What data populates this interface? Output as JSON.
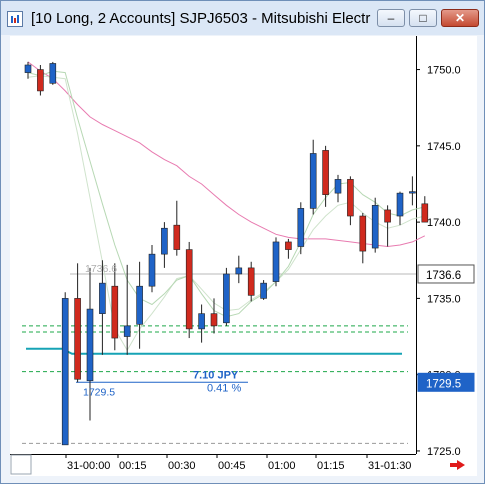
{
  "window": {
    "title": "[10 Long, 2 Accounts]  SJPJ6503 - Mitsubishi Electr…",
    "minimize_label": "–",
    "maximize_label": "□",
    "close_label": "✕"
  },
  "chart_data": {
    "type": "candlestick",
    "symbol": "SJPJ6503",
    "y_ticks": [
      "1750.0",
      "1745.0",
      "1740.0",
      "1735.0",
      "1730.0",
      "1725.0"
    ],
    "ylim": [
      1724.8,
      1752.2
    ],
    "x_ticks": [
      "31-00:00",
      "00:15",
      "00:30",
      "00:45",
      "01:00",
      "01:15",
      "31-01:30"
    ],
    "candles": [
      {
        "o": 1749.8,
        "h": 1750.5,
        "l": 1749.4,
        "c": 1750.3
      },
      {
        "o": 1750.0,
        "h": 1750.3,
        "l": 1748.3,
        "c": 1748.6
      },
      {
        "o": 1749.1,
        "h": 1750.5,
        "l": 1749.0,
        "c": 1750.4
      },
      {
        "o": 1725.4,
        "h": 1735.4,
        "l": 1725.4,
        "c": 1735.0
      },
      {
        "o": 1735.0,
        "h": 1737.3,
        "l": 1729.5,
        "c": 1729.7
      },
      {
        "o": 1729.6,
        "h": 1737.0,
        "l": 1727.0,
        "c": 1734.3
      },
      {
        "o": 1734.0,
        "h": 1737.5,
        "l": 1731.3,
        "c": 1736.0
      },
      {
        "o": 1735.8,
        "h": 1737.3,
        "l": 1731.6,
        "c": 1732.4
      },
      {
        "o": 1732.5,
        "h": 1737.2,
        "l": 1731.3,
        "c": 1733.2
      },
      {
        "o": 1733.3,
        "h": 1737.4,
        "l": 1731.7,
        "c": 1735.8
      },
      {
        "o": 1735.8,
        "h": 1738.5,
        "l": 1735.4,
        "c": 1737.9
      },
      {
        "o": 1737.9,
        "h": 1740.0,
        "l": 1737.0,
        "c": 1739.6
      },
      {
        "o": 1739.8,
        "h": 1741.4,
        "l": 1737.8,
        "c": 1738.2
      },
      {
        "o": 1738.2,
        "h": 1738.7,
        "l": 1732.4,
        "c": 1733.0
      },
      {
        "o": 1733.0,
        "h": 1734.6,
        "l": 1732.1,
        "c": 1734.0
      },
      {
        "o": 1734.0,
        "h": 1735.0,
        "l": 1732.7,
        "c": 1733.2
      },
      {
        "o": 1733.4,
        "h": 1737.0,
        "l": 1733.2,
        "c": 1736.6
      },
      {
        "o": 1736.6,
        "h": 1737.8,
        "l": 1736.0,
        "c": 1737.0
      },
      {
        "o": 1737.0,
        "h": 1737.4,
        "l": 1734.8,
        "c": 1735.2
      },
      {
        "o": 1735.0,
        "h": 1736.2,
        "l": 1734.9,
        "c": 1736.0
      },
      {
        "o": 1736.1,
        "h": 1739.0,
        "l": 1735.8,
        "c": 1738.7
      },
      {
        "o": 1738.7,
        "h": 1738.9,
        "l": 1737.6,
        "c": 1738.2
      },
      {
        "o": 1738.4,
        "h": 1741.3,
        "l": 1737.9,
        "c": 1740.9
      },
      {
        "o": 1740.9,
        "h": 1745.4,
        "l": 1740.5,
        "c": 1744.5
      },
      {
        "o": 1744.7,
        "h": 1745.0,
        "l": 1741.0,
        "c": 1741.8
      },
      {
        "o": 1741.9,
        "h": 1743.1,
        "l": 1741.3,
        "c": 1742.8
      },
      {
        "o": 1742.8,
        "h": 1743.0,
        "l": 1739.8,
        "c": 1740.4
      },
      {
        "o": 1740.4,
        "h": 1740.6,
        "l": 1737.3,
        "c": 1738.1
      },
      {
        "o": 1738.3,
        "h": 1741.6,
        "l": 1738.0,
        "c": 1741.1
      },
      {
        "o": 1740.8,
        "h": 1741.1,
        "l": 1738.4,
        "c": 1740.0
      },
      {
        "o": 1740.4,
        "h": 1742.0,
        "l": 1739.8,
        "c": 1741.9
      },
      {
        "o": 1741.9,
        "h": 1743.0,
        "l": 1741.1,
        "c": 1742.0
      },
      {
        "o": 1741.2,
        "h": 1741.7,
        "l": 1740.0,
        "c": 1740.0
      }
    ],
    "ma_slow": [
      1750.5,
      1749.9,
      1749.4,
      1748.6,
      1747.7,
      1746.9,
      1746.4,
      1746.0,
      1745.6,
      1745.2,
      1744.6,
      1744.1,
      1743.7,
      1743.0,
      1742.5,
      1741.8,
      1741.1,
      1740.5,
      1740.0,
      1739.6,
      1739.2,
      1739.0,
      1738.9,
      1738.9,
      1738.9,
      1738.8,
      1738.7,
      1738.6,
      1738.5,
      1738.4,
      1738.5,
      1738.7,
      1739.1
    ],
    "ma_fast": [
      1749.8,
      1749.6,
      1749.9,
      1749.8,
      1746.8,
      1744.0,
      1741.2,
      1738.5,
      1736.2,
      1735.0,
      1734.6,
      1735.3,
      1736.2,
      1736.5,
      1735.3,
      1734.2,
      1733.8,
      1734.0,
      1734.8,
      1735.3,
      1736.1,
      1737.1,
      1738.7,
      1740.5,
      1741.6,
      1742.5,
      1742.6,
      1741.8,
      1741.3,
      1740.6,
      1740.4,
      1740.8,
      1741.0
    ],
    "ma_mid": [
      1749.5,
      1749.6,
      1749.5,
      1749.4,
      1745.8,
      1741.6,
      1737.4,
      1733.0,
      1731.6,
      1733.0,
      1734.0,
      1735.1,
      1736.3,
      1736.5,
      1735.6,
      1734.7,
      1734.2,
      1734.3,
      1734.9,
      1735.4,
      1736.1,
      1736.9,
      1738.2,
      1739.5,
      1740.4,
      1741.1,
      1741.3,
      1740.6,
      1740.0,
      1739.6,
      1739.8,
      1740.2,
      1740.4
    ],
    "hline_gray": 1736.6,
    "hline_teal": 1731.7,
    "hline_blue": 1729.5,
    "green_levels": [
      1733.2,
      1732.8,
      1730.2,
      1725.5
    ],
    "labels": {
      "price_current": "1736.6",
      "price_entry": "1729.5",
      "entry_text": "1729.5",
      "gray_text": "1736.6",
      "pl_amount": "7.10 JPY",
      "pl_percent": "0.41 %"
    }
  }
}
